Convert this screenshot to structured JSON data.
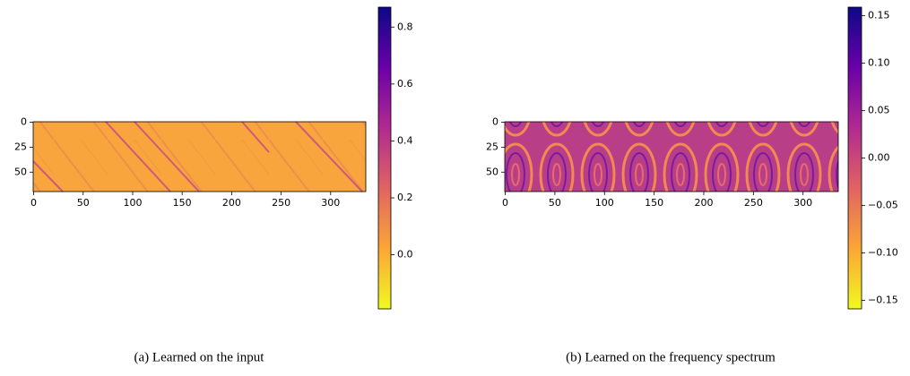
{
  "chart_data": [
    {
      "type": "heatmap",
      "caption": "(a) Learned on the input",
      "xlim": [
        -0.5,
        335.5
      ],
      "ylim": [
        69.5,
        -0.5
      ],
      "xticks": [
        0,
        50,
        100,
        150,
        200,
        250,
        300
      ],
      "yticks": [
        0,
        25,
        50
      ],
      "clim": [
        -0.19,
        0.87
      ],
      "cticks": [
        {
          "value": 0,
          "label": "0.0"
        },
        0.2,
        0.4,
        0.6,
        0.8
      ],
      "colormap": [
        "#0d0887",
        "#6a00a8",
        "#b12a90",
        "#e16462",
        "#fca636",
        "#f0f921"
      ]
    },
    {
      "type": "heatmap",
      "caption": "(b) Learned on the frequency spectrum",
      "xlim": [
        -0.5,
        335.5
      ],
      "ylim": [
        69.5,
        -0.5
      ],
      "xticks": [
        0,
        50,
        100,
        150,
        200,
        250,
        300
      ],
      "yticks": [
        0,
        25,
        50
      ],
      "clim": [
        -0.159,
        0.159
      ],
      "cticks": [
        {
          "value": -0.15,
          "label": "−0.15"
        },
        {
          "value": -0.1,
          "label": "−0.10"
        },
        {
          "value": -0.05,
          "label": "−0.05"
        },
        {
          "value": 0,
          "label": "0.00"
        },
        {
          "value": 0.05,
          "label": "0.05"
        },
        {
          "value": 0.1,
          "label": "0.10"
        },
        {
          "value": 0.15,
          "label": "0.15"
        }
      ],
      "colormap": [
        "#0d0887",
        "#6a00a8",
        "#b12a90",
        "#e16462",
        "#fca636",
        "#f0f921"
      ]
    }
  ]
}
